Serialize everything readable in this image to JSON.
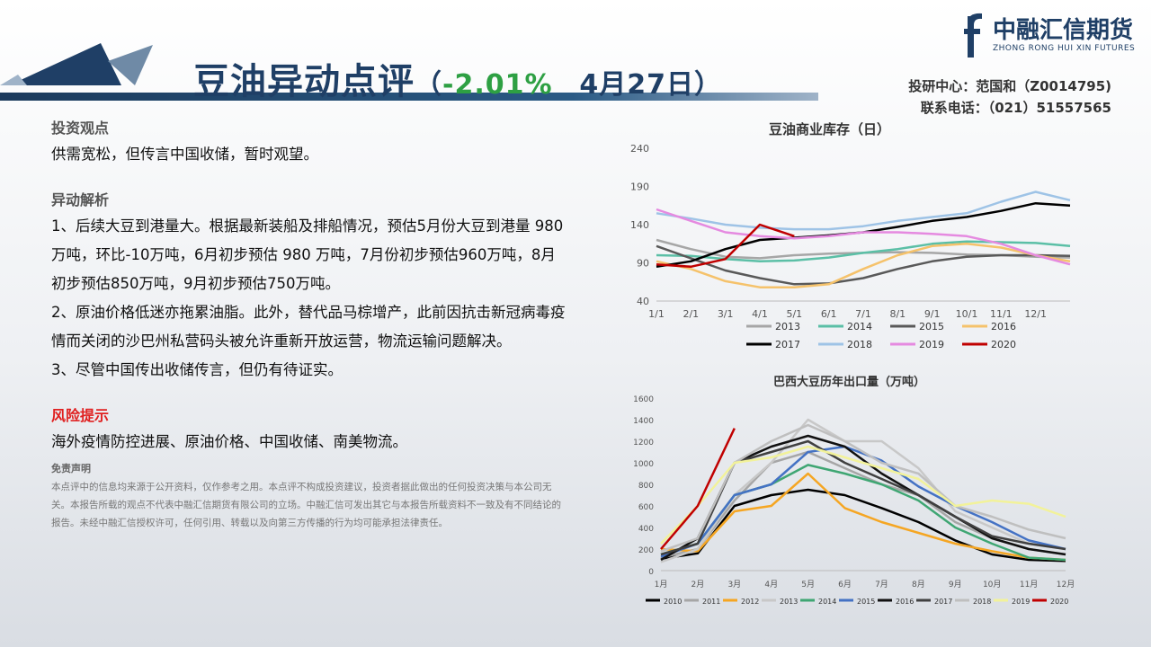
{
  "header": {
    "title": "豆油异动点评",
    "paren_open": "（",
    "change_pct": "-2.01%",
    "date": "4月27日",
    "paren_close": "）",
    "brand_cn": "中融汇信期货",
    "brand_en": "ZHONG RONG HUI XIN FUTURES",
    "contact_line1": "投研中心：范国和（Z0014795)",
    "contact_line2": "联系电话：（021）51557565"
  },
  "left": {
    "view_heading": "投资观点",
    "view_text": "供需宽松，但传言中国收储，暂时观望。",
    "analysis_heading": "异动解析",
    "point1": "1、后续大豆到港量大。根据最新装船及排船情况，预估5月份大豆到港量 980万吨，环比-10万吨，6月初步预估 980 万吨，7月份初步预估960万吨，8月初步预估850万吨，9月初步预估750万吨。",
    "point2": "2、原油价格低迷亦拖累油脂。此外，替代品马棕增产，此前因抗击新冠病毒疫情而关闭的沙巴州私营码头被允许重新开放运营，物流运输问题解决。",
    "point3": "3、尽管中国传出收储传言，但仍有待证实。",
    "risk_heading": "风险提示",
    "risk_text": "海外疫情防控进展、原油价格、中国收储、南美物流。",
    "disclaimer_heading": "免责声明",
    "disclaimer_text": "本点评中的信息均来源于公开资料，仅作参考之用。本点评不构成投资建议，投资者据此做出的任何投资决策与本公司无关。本报告所载的观点不代表中融汇信期货有限公司的立场。中融汇信可发出其它与本报告所载资料不一致及有不同结论的报告。未经中融汇信授权许可，任何引用、转载以及向第三方传播的行为均可能承担法律责任。"
  },
  "chart_data": [
    {
      "type": "line",
      "title": "豆油商业库存（日）",
      "ylim": [
        40,
        240
      ],
      "yticks": [
        40,
        90,
        140,
        190,
        240
      ],
      "xticks": [
        "1/1",
        "2/1",
        "3/1",
        "4/1",
        "5/1",
        "6/1",
        "7/1",
        "8/1",
        "9/1",
        "10/1",
        "11/1",
        "12/1"
      ],
      "legend_position": "bottom",
      "series": [
        {
          "name": "2013",
          "color": "#a6a6a6",
          "values": [
            120,
            108,
            98,
            96,
            100,
            102,
            103,
            104,
            103,
            101,
            100,
            98,
            97
          ]
        },
        {
          "name": "2014",
          "color": "#5bbfa6",
          "values": [
            100,
            99,
            95,
            92,
            93,
            97,
            103,
            108,
            115,
            118,
            117,
            116,
            112
          ]
        },
        {
          "name": "2015",
          "color": "#595959",
          "values": [
            112,
            96,
            80,
            70,
            62,
            63,
            70,
            82,
            92,
            98,
            100,
            100,
            99
          ]
        },
        {
          "name": "2016",
          "color": "#f5c26b",
          "values": [
            92,
            82,
            66,
            58,
            58,
            62,
            82,
            100,
            112,
            115,
            110,
            100,
            92
          ]
        },
        {
          "name": "2017",
          "color": "#000000",
          "values": [
            85,
            92,
            108,
            120,
            123,
            126,
            130,
            137,
            145,
            150,
            158,
            168,
            165
          ]
        },
        {
          "name": "2018",
          "color": "#9ec3e6",
          "values": [
            155,
            148,
            140,
            136,
            134,
            134,
            138,
            145,
            150,
            155,
            170,
            183,
            172
          ]
        },
        {
          "name": "2019",
          "color": "#e58ae0",
          "values": [
            160,
            145,
            130,
            125,
            122,
            125,
            130,
            130,
            128,
            125,
            115,
            100,
            88
          ]
        },
        {
          "name": "2020",
          "color": "#c00000",
          "values": [
            88,
            85,
            95,
            140,
            125
          ]
        }
      ]
    },
    {
      "type": "line",
      "title": "巴西大豆历年出口量（万吨）",
      "ylim": [
        0,
        1600
      ],
      "yticks": [
        0,
        200,
        400,
        600,
        800,
        1000,
        1200,
        1400,
        1600
      ],
      "xticks": [
        "1月",
        "2月",
        "3月",
        "4月",
        "5月",
        "6月",
        "7月",
        "8月",
        "9月",
        "10月",
        "11月",
        "12月"
      ],
      "legend_position": "bottom",
      "series": [
        {
          "name": "2010",
          "color": "#000000",
          "values": [
            110,
            160,
            600,
            700,
            750,
            700,
            580,
            450,
            280,
            150,
            100,
            90
          ]
        },
        {
          "name": "2011",
          "color": "#a6a6a6",
          "values": [
            120,
            200,
            650,
            1000,
            1100,
            950,
            800,
            700,
            450,
            300,
            200,
            150
          ]
        },
        {
          "name": "2012",
          "color": "#f5a623",
          "values": [
            200,
            180,
            550,
            600,
            900,
            580,
            450,
            350,
            250,
            180,
            120,
            100
          ]
        },
        {
          "name": "2013",
          "color": "#c8c8c8",
          "values": [
            80,
            200,
            700,
            1000,
            1400,
            1200,
            1200,
            950,
            550,
            400,
            250,
            200
          ]
        },
        {
          "name": "2014",
          "color": "#3fa673",
          "values": [
            150,
            250,
            700,
            800,
            980,
            900,
            800,
            650,
            400,
            250,
            120,
            100
          ]
        },
        {
          "name": "2015",
          "color": "#4472c4",
          "values": [
            130,
            250,
            700,
            800,
            1100,
            1150,
            1020,
            780,
            600,
            450,
            280,
            200
          ]
        },
        {
          "name": "2016",
          "color": "#111111",
          "values": [
            100,
            300,
            1000,
            1150,
            1250,
            1150,
            900,
            700,
            500,
            300,
            200,
            150
          ]
        },
        {
          "name": "2017",
          "color": "#404040",
          "values": [
            150,
            250,
            1000,
            1100,
            1200,
            1000,
            850,
            700,
            500,
            320,
            250,
            200
          ]
        },
        {
          "name": "2018",
          "color": "#bfbfbf",
          "values": [
            180,
            300,
            1000,
            1200,
            1350,
            1200,
            1000,
            900,
            600,
            500,
            380,
            300
          ]
        },
        {
          "name": "2019",
          "color": "#f2f29a",
          "values": [
            250,
            600,
            1000,
            1050,
            1150,
            1050,
            950,
            850,
            600,
            650,
            620,
            500
          ]
        },
        {
          "name": "2020",
          "color": "#c00000",
          "values": [
            200,
            600,
            1320
          ]
        }
      ]
    }
  ]
}
